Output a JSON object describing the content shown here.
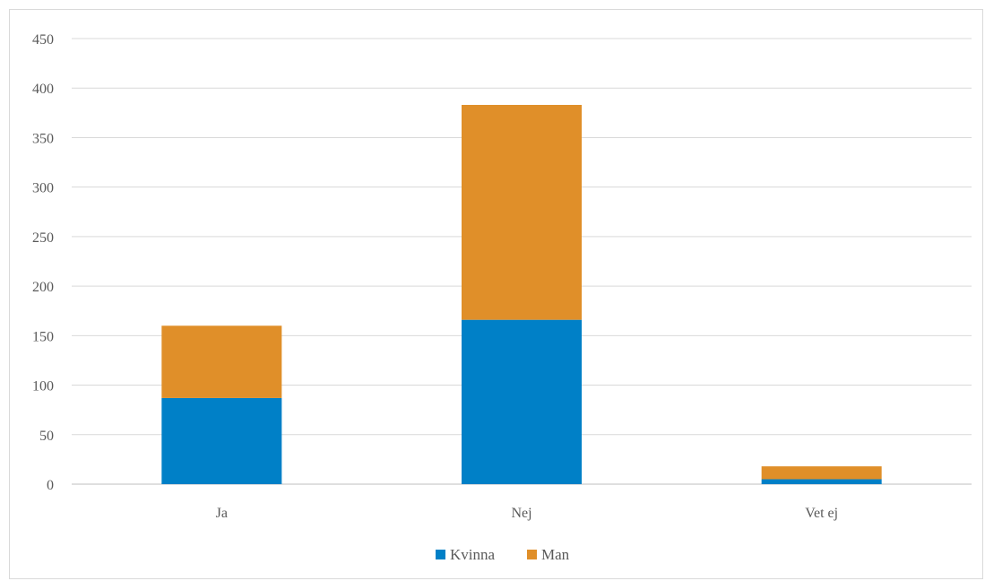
{
  "chart_data": {
    "type": "bar",
    "stacked": true,
    "categories": [
      "Ja",
      "Nej",
      "Vet ej"
    ],
    "series": [
      {
        "name": "Kvinna",
        "values": [
          87,
          166,
          5
        ],
        "color": "#0080c7"
      },
      {
        "name": "Man",
        "values": [
          73,
          217,
          13
        ],
        "color": "#e08f29"
      }
    ],
    "ylim": [
      0,
      450
    ],
    "yticks": [
      0,
      50,
      100,
      150,
      200,
      250,
      300,
      350,
      400,
      450
    ],
    "grid": true,
    "legend_position": "bottom",
    "title": "",
    "xlabel": "",
    "ylabel": ""
  }
}
